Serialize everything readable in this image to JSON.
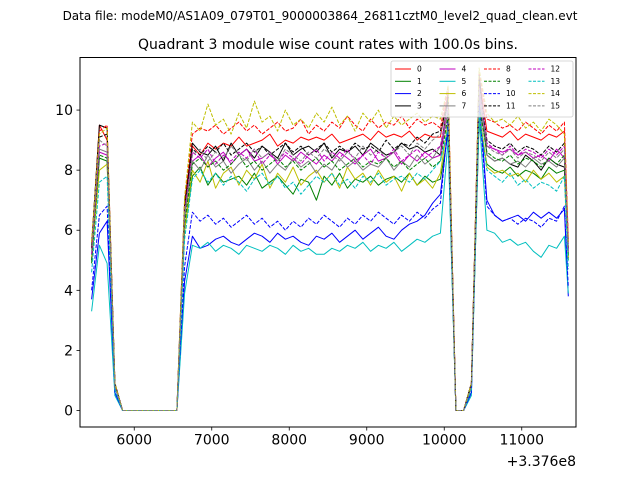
{
  "chart_data": {
    "type": "line",
    "suptitle": "Data file: modeM0/AS1A09_079T01_9000003864_26811cztM0_level2_quad_clean.evt",
    "title": "Quadrant 3 module wise count rates with 100.0s bins.",
    "xlabel": "",
    "ylabel": "",
    "x_offset_label": "+3.376e8",
    "xlim": [
      5300,
      11700
    ],
    "ylim": [
      -0.55,
      11.75
    ],
    "xticks": [
      6000,
      7000,
      8000,
      9000,
      10000,
      11000
    ],
    "xtick_labels": [
      "6000",
      "7000",
      "8000",
      "9000",
      "10000",
      "11000"
    ],
    "yticks": [
      0,
      2,
      4,
      6,
      8,
      10
    ],
    "ytick_labels": [
      "0",
      "2",
      "4",
      "6",
      "8",
      "10"
    ],
    "grid": false,
    "legend_position": "top-right",
    "segments": [
      [
        5450,
        5550,
        5650,
        5750,
        5850,
        5950,
        6050,
        6150,
        6250,
        6350,
        6450,
        6550,
        6650,
        6750,
        6850,
        6950,
        7050,
        7150,
        7250,
        7350,
        7450,
        7550,
        7650,
        7750,
        7850,
        7950,
        8050,
        8150,
        8250,
        8350,
        8450,
        8550,
        8650,
        8750,
        8850,
        8950,
        9050,
        9150,
        9250,
        9350,
        9450,
        9550,
        9650,
        9750,
        9850,
        9950,
        10050,
        10150,
        10250,
        10350,
        10450,
        10550,
        10650,
        10750,
        10850,
        10950,
        11050,
        11150,
        11250,
        11350,
        11450,
        11550,
        11600
      ]
    ],
    "series": [
      {
        "name": "0",
        "color": "#ff0000",
        "dash": "solid",
        "values": [
          5.4,
          9.5,
          9.0,
          0.9,
          0.0,
          0.0,
          0.0,
          0.0,
          0.0,
          0.0,
          0.0,
          0.0,
          6.8,
          8.8,
          8.5,
          8.9,
          8.7,
          8.9,
          8.8,
          9.1,
          8.8,
          8.9,
          9.0,
          9.2,
          8.8,
          9.0,
          8.9,
          9.1,
          9.0,
          9.1,
          9.0,
          9.2,
          8.9,
          9.0,
          9.1,
          9.2,
          9.0,
          9.3,
          9.1,
          9.2,
          9.1,
          9.3,
          9.0,
          9.2,
          9.1,
          9.1,
          10.6,
          0.0,
          0.0,
          0.9,
          11.1,
          9.3,
          9.2,
          9.1,
          9.3,
          9.0,
          9.2,
          9.1,
          9.0,
          9.2,
          9.1,
          9.3,
          5.6
        ]
      },
      {
        "name": "1",
        "color": "#008000",
        "dash": "solid",
        "values": [
          4.9,
          8.4,
          8.3,
          0.8,
          0.0,
          0.0,
          0.0,
          0.0,
          0.0,
          0.0,
          0.0,
          0.0,
          6.0,
          7.8,
          8.1,
          7.5,
          7.9,
          7.6,
          7.7,
          7.8,
          7.5,
          7.9,
          7.4,
          7.6,
          7.8,
          7.5,
          7.2,
          7.7,
          7.6,
          7.0,
          7.8,
          7.5,
          7.9,
          7.4,
          7.7,
          7.6,
          7.8,
          7.5,
          7.7,
          7.8,
          7.6,
          7.9,
          7.5,
          7.8,
          7.6,
          7.7,
          9.2,
          0.0,
          0.0,
          0.8,
          9.6,
          8.2,
          8.0,
          7.9,
          8.1,
          7.8,
          8.0,
          7.9,
          7.7,
          8.1,
          7.9,
          8.0,
          5.0
        ]
      },
      {
        "name": "2",
        "color": "#0000ff",
        "dash": "solid",
        "values": [
          3.7,
          5.9,
          6.3,
          0.6,
          0.0,
          0.0,
          0.0,
          0.0,
          0.0,
          0.0,
          0.0,
          0.0,
          4.3,
          5.8,
          5.4,
          5.5,
          5.7,
          5.8,
          5.6,
          5.5,
          5.7,
          5.9,
          5.8,
          5.6,
          5.9,
          5.7,
          5.8,
          5.6,
          5.5,
          5.8,
          5.7,
          5.9,
          5.6,
          5.8,
          6.0,
          5.7,
          5.9,
          6.1,
          5.8,
          5.7,
          6.0,
          6.2,
          6.3,
          6.5,
          6.9,
          7.2,
          9.4,
          0.0,
          0.0,
          0.6,
          10.5,
          7.0,
          6.5,
          6.3,
          6.4,
          6.5,
          6.3,
          6.6,
          6.4,
          6.6,
          6.4,
          6.7,
          3.8
        ]
      },
      {
        "name": "3",
        "color": "#000000",
        "dash": "solid",
        "values": [
          5.5,
          9.5,
          9.4,
          0.9,
          0.0,
          0.0,
          0.0,
          0.0,
          0.0,
          0.0,
          0.0,
          0.0,
          6.9,
          8.9,
          8.6,
          8.5,
          8.8,
          8.3,
          8.9,
          8.5,
          8.7,
          8.4,
          8.8,
          8.6,
          8.4,
          8.9,
          8.5,
          8.7,
          8.8,
          8.6,
          8.9,
          8.4,
          8.7,
          8.6,
          8.8,
          8.5,
          8.9,
          8.7,
          8.5,
          8.6,
          8.9,
          8.7,
          8.8,
          8.6,
          8.7,
          8.5,
          10.5,
          0.0,
          0.0,
          0.9,
          11.2,
          8.5,
          8.3,
          8.4,
          8.2,
          8.1,
          8.5,
          8.3,
          8.0,
          8.4,
          8.2,
          8.1,
          5.4
        ]
      },
      {
        "name": "4",
        "color": "#bf00bf",
        "dash": "solid",
        "values": [
          5.0,
          8.6,
          8.5,
          0.8,
          0.0,
          0.0,
          0.0,
          0.0,
          0.0,
          0.0,
          0.0,
          0.0,
          6.4,
          8.3,
          8.5,
          8.1,
          8.4,
          8.6,
          8.2,
          8.5,
          8.7,
          8.3,
          8.4,
          8.6,
          8.2,
          8.5,
          8.3,
          8.6,
          8.4,
          8.2,
          8.5,
          8.3,
          8.6,
          8.4,
          8.2,
          8.5,
          8.7,
          8.3,
          8.4,
          8.6,
          8.2,
          8.5,
          8.3,
          8.6,
          8.4,
          8.5,
          10.0,
          0.0,
          0.0,
          0.8,
          10.6,
          8.8,
          8.7,
          8.6,
          8.7,
          8.5,
          8.6,
          8.4,
          8.5,
          8.3,
          8.7,
          8.4,
          5.3
        ]
      },
      {
        "name": "5",
        "color": "#00bfbf",
        "dash": "solid",
        "values": [
          3.3,
          5.5,
          4.9,
          0.5,
          0.0,
          0.0,
          0.0,
          0.0,
          0.0,
          0.0,
          0.0,
          0.0,
          3.9,
          5.5,
          5.4,
          5.6,
          5.3,
          5.5,
          5.4,
          5.2,
          5.5,
          5.4,
          5.3,
          5.5,
          5.4,
          5.2,
          5.5,
          5.3,
          5.4,
          5.2,
          5.2,
          5.4,
          5.3,
          5.5,
          5.4,
          5.6,
          5.3,
          5.5,
          5.4,
          5.6,
          5.3,
          5.5,
          5.7,
          5.6,
          5.8,
          5.9,
          9.0,
          0.0,
          0.0,
          0.5,
          9.8,
          6.0,
          5.9,
          5.6,
          5.7,
          5.5,
          5.6,
          5.3,
          5.1,
          5.5,
          5.4,
          5.8,
          3.9
        ]
      },
      {
        "name": "6",
        "color": "#bfbf00",
        "dash": "solid",
        "values": [
          5.1,
          8.0,
          8.2,
          0.8,
          0.0,
          0.0,
          0.0,
          0.0,
          0.0,
          0.0,
          0.0,
          0.0,
          6.0,
          8.0,
          7.6,
          8.3,
          7.4,
          7.9,
          8.1,
          7.5,
          8.0,
          7.7,
          8.2,
          7.4,
          7.9,
          7.6,
          8.1,
          7.5,
          7.8,
          8.0,
          7.6,
          7.9,
          7.4,
          8.1,
          7.7,
          7.9,
          7.5,
          8.0,
          7.6,
          7.8,
          7.3,
          7.9,
          7.5,
          7.7,
          7.4,
          7.9,
          9.6,
          0.0,
          0.0,
          0.8,
          10.0,
          8.1,
          7.9,
          8.0,
          7.8,
          7.9,
          7.6,
          8.0,
          7.7,
          7.9,
          7.6,
          7.8,
          5.1
        ]
      },
      {
        "name": "7",
        "color": "#808080",
        "dash": "solid",
        "values": [
          5.2,
          8.7,
          8.6,
          0.8,
          0.0,
          0.0,
          0.0,
          0.0,
          0.0,
          0.0,
          0.0,
          0.0,
          6.4,
          8.3,
          8.0,
          8.5,
          8.1,
          8.3,
          7.9,
          8.2,
          8.4,
          8.0,
          8.3,
          7.9,
          8.2,
          8.0,
          8.4,
          8.1,
          8.3,
          7.9,
          8.2,
          8.0,
          8.4,
          8.1,
          8.3,
          8.0,
          8.2,
          8.1,
          8.4,
          8.0,
          8.3,
          8.1,
          8.5,
          8.2,
          8.4,
          8.8,
          9.9,
          0.0,
          0.0,
          0.8,
          10.4,
          8.5,
          8.3,
          8.4,
          8.2,
          8.3,
          8.1,
          8.4,
          8.2,
          8.3,
          8.1,
          8.4,
          5.2
        ]
      },
      {
        "name": "8",
        "color": "#ff0000",
        "dash": "dashed",
        "values": [
          5.6,
          9.3,
          9.5,
          0.9,
          0.0,
          0.0,
          0.0,
          0.0,
          0.0,
          0.0,
          0.0,
          0.0,
          7.0,
          9.2,
          9.4,
          9.3,
          9.5,
          9.2,
          9.4,
          9.6,
          9.3,
          9.5,
          9.2,
          9.4,
          9.6,
          9.3,
          9.4,
          9.7,
          9.2,
          9.5,
          9.3,
          9.6,
          9.4,
          9.8,
          9.5,
          9.3,
          9.7,
          9.4,
          9.6,
          9.5,
          9.8,
          9.4,
          9.7,
          9.5,
          9.6,
          9.4,
          10.8,
          0.0,
          0.0,
          0.9,
          11.3,
          9.7,
          9.6,
          9.4,
          9.5,
          9.3,
          9.6,
          9.4,
          9.2,
          9.5,
          9.3,
          9.6,
          5.7
        ]
      },
      {
        "name": "9",
        "color": "#008000",
        "dash": "dashed",
        "values": [
          5.0,
          8.5,
          8.4,
          0.8,
          0.0,
          0.0,
          0.0,
          0.0,
          0.0,
          0.0,
          0.0,
          0.0,
          6.2,
          8.2,
          8.4,
          8.1,
          8.3,
          8.0,
          8.2,
          8.5,
          8.1,
          8.3,
          8.0,
          8.2,
          8.4,
          8.1,
          8.3,
          8.0,
          8.2,
          8.4,
          8.1,
          8.3,
          8.0,
          8.2,
          8.4,
          8.1,
          8.3,
          8.2,
          8.4,
          8.1,
          8.3,
          8.0,
          8.2,
          8.4,
          8.1,
          8.3,
          9.8,
          0.0,
          0.0,
          0.8,
          10.2,
          8.6,
          8.4,
          8.3,
          8.5,
          8.2,
          8.4,
          8.3,
          8.1,
          8.4,
          8.2,
          8.5,
          5.1
        ]
      },
      {
        "name": "10",
        "color": "#0000ff",
        "dash": "dashed",
        "values": [
          4.0,
          6.5,
          6.8,
          0.6,
          0.0,
          0.0,
          0.0,
          0.0,
          0.0,
          0.0,
          0.0,
          0.0,
          4.8,
          6.6,
          6.3,
          6.5,
          6.2,
          6.4,
          6.1,
          6.3,
          6.5,
          6.2,
          6.4,
          6.1,
          6.3,
          6.0,
          6.3,
          6.1,
          6.4,
          6.2,
          6.5,
          6.3,
          6.1,
          6.4,
          6.2,
          6.5,
          6.3,
          6.6,
          6.4,
          6.2,
          6.5,
          6.3,
          6.6,
          6.4,
          6.7,
          6.9,
          9.6,
          0.0,
          0.0,
          0.6,
          10.2,
          6.8,
          6.5,
          6.3,
          6.4,
          6.2,
          6.4,
          6.3,
          6.1,
          6.4,
          6.3,
          6.8,
          4.1
        ]
      },
      {
        "name": "11",
        "color": "#000000",
        "dash": "dashed",
        "values": [
          5.4,
          9.1,
          9.2,
          0.9,
          0.0,
          0.0,
          0.0,
          0.0,
          0.0,
          0.0,
          0.0,
          0.0,
          6.7,
          8.7,
          8.5,
          8.8,
          8.6,
          8.9,
          8.5,
          8.7,
          8.9,
          8.6,
          8.8,
          8.5,
          8.7,
          8.9,
          8.6,
          8.8,
          8.5,
          8.7,
          8.9,
          8.6,
          8.8,
          8.6,
          8.9,
          8.7,
          8.8,
          8.6,
          9.0,
          8.7,
          8.9,
          8.8,
          9.1,
          8.9,
          9.2,
          9.3,
          10.3,
          0.0,
          0.0,
          0.9,
          10.9,
          9.0,
          8.8,
          8.7,
          8.9,
          8.6,
          8.8,
          8.7,
          8.5,
          8.8,
          8.6,
          8.9,
          5.4
        ]
      },
      {
        "name": "12",
        "color": "#bf00bf",
        "dash": "dashed",
        "values": [
          5.2,
          8.8,
          8.9,
          0.8,
          0.0,
          0.0,
          0.0,
          0.0,
          0.0,
          0.0,
          0.0,
          0.0,
          6.6,
          8.6,
          8.4,
          8.7,
          8.2,
          8.5,
          8.3,
          8.6,
          8.4,
          8.7,
          8.2,
          8.5,
          8.3,
          8.6,
          8.4,
          8.2,
          8.5,
          8.7,
          8.3,
          8.6,
          8.4,
          8.7,
          8.3,
          8.5,
          8.2,
          8.6,
          8.4,
          8.7,
          8.3,
          8.5,
          8.7,
          8.4,
          8.6,
          8.8,
          10.2,
          0.0,
          0.0,
          0.8,
          10.8,
          8.9,
          8.7,
          8.5,
          8.8,
          8.5,
          8.7,
          8.6,
          8.4,
          8.7,
          8.5,
          8.8,
          5.3
        ]
      },
      {
        "name": "13",
        "color": "#00bfbf",
        "dash": "dashed",
        "values": [
          4.6,
          7.6,
          7.8,
          0.7,
          0.0,
          0.0,
          0.0,
          0.0,
          0.0,
          0.0,
          0.0,
          0.0,
          5.7,
          7.7,
          8.0,
          7.6,
          7.9,
          7.5,
          7.8,
          7.6,
          7.3,
          7.7,
          7.9,
          7.5,
          7.8,
          7.4,
          7.6,
          7.2,
          7.5,
          7.8,
          7.6,
          7.9,
          7.5,
          7.7,
          7.4,
          7.8,
          7.6,
          7.9,
          7.5,
          7.7,
          7.8,
          7.6,
          7.9,
          7.7,
          8.0,
          8.3,
          9.4,
          0.0,
          0.0,
          0.7,
          9.9,
          8.0,
          7.8,
          7.6,
          7.9,
          7.5,
          7.7,
          7.4,
          7.6,
          7.5,
          7.3,
          7.8,
          4.7
        ]
      },
      {
        "name": "14",
        "color": "#bfbf00",
        "dash": "dashed",
        "values": [
          5.6,
          9.2,
          9.4,
          0.9,
          0.0,
          0.0,
          0.0,
          0.0,
          0.0,
          0.0,
          0.0,
          0.0,
          7.1,
          9.6,
          9.3,
          10.2,
          9.5,
          9.7,
          9.2,
          9.9,
          9.4,
          10.3,
          9.6,
          9.8,
          9.3,
          10.0,
          9.5,
          9.7,
          9.4,
          9.9,
          9.6,
          10.1,
          9.5,
          9.8,
          9.3,
          9.9,
          9.6,
          10.0,
          9.4,
          9.8,
          9.5,
          9.7,
          9.9,
          9.6,
          9.8,
          9.7,
          10.8,
          0.0,
          0.0,
          0.9,
          11.4,
          9.9,
          9.6,
          9.7,
          9.5,
          9.8,
          9.4,
          9.6,
          9.3,
          9.7,
          9.5,
          9.2,
          5.6
        ]
      },
      {
        "name": "15",
        "color": "#808080",
        "dash": "dashed",
        "values": [
          5.3,
          9.0,
          8.8,
          0.8,
          0.0,
          0.0,
          0.0,
          0.0,
          0.0,
          0.0,
          0.0,
          0.0,
          6.5,
          8.5,
          8.7,
          8.3,
          8.6,
          8.4,
          8.8,
          8.5,
          8.3,
          8.7,
          8.4,
          8.6,
          8.3,
          8.7,
          8.5,
          8.3,
          8.6,
          8.4,
          8.7,
          8.5,
          8.3,
          8.6,
          8.4,
          8.8,
          8.5,
          8.7,
          8.4,
          8.6,
          8.8,
          8.5,
          8.9,
          8.7,
          9.0,
          9.2,
          10.1,
          0.0,
          0.0,
          0.8,
          10.7,
          8.8,
          8.6,
          8.5,
          8.7,
          8.4,
          8.6,
          8.5,
          8.3,
          8.6,
          8.4,
          8.7,
          5.3
        ]
      }
    ]
  }
}
